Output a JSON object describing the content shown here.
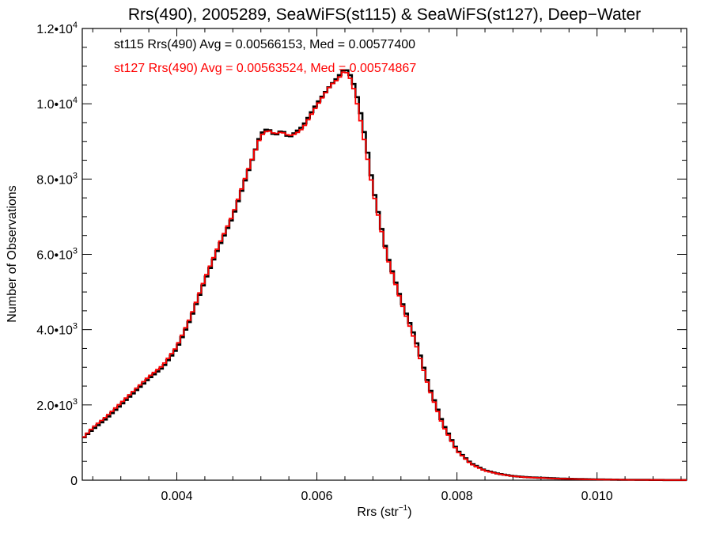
{
  "chart_data": {
    "type": "line",
    "title": "Rrs(490), 2005289, SeaWiFS(st115) & SeaWiFS(st127), Deep−Water",
    "xlabel_main": "Rrs (str",
    "xlabel_sup": "−1",
    "xlabel_end": ")",
    "ylabel": "Number of Observations",
    "xlim": [
      0.00265,
      0.01128
    ],
    "ylim": [
      0,
      12000
    ],
    "x_ticks": [
      {
        "value": 0.004,
        "label": "0.004"
      },
      {
        "value": 0.006,
        "label": "0.006"
      },
      {
        "value": 0.008,
        "label": "0.008"
      },
      {
        "value": 0.01,
        "label": "0.010"
      }
    ],
    "y_ticks": [
      {
        "value": 0,
        "mant": "0",
        "exp": ""
      },
      {
        "value": 2000,
        "mant": "2.0•10",
        "exp": "3"
      },
      {
        "value": 4000,
        "mant": "4.0•10",
        "exp": "3"
      },
      {
        "value": 6000,
        "mant": "6.0•10",
        "exp": "3"
      },
      {
        "value": 8000,
        "mant": "8.0•10",
        "exp": "3"
      },
      {
        "value": 10000,
        "mant": "1.0•10",
        "exp": "4"
      },
      {
        "value": 12000,
        "mant": "1.2•10",
        "exp": "4"
      }
    ],
    "series": [
      {
        "name": "st115",
        "color": "#000000",
        "legend": "st115 Rrs(490) Avg = 0.00566153, Med = 0.00577400",
        "x": [
          0.00265,
          0.0028,
          0.003,
          0.0032,
          0.0034,
          0.0036,
          0.0038,
          0.004,
          0.0042,
          0.0044,
          0.0046,
          0.0048,
          0.005,
          0.0052,
          0.0053,
          0.0054,
          0.0055,
          0.0056,
          0.0057,
          0.0058,
          0.006,
          0.0062,
          0.0063,
          0.0064,
          0.0065,
          0.0066,
          0.0067,
          0.0068,
          0.007,
          0.0072,
          0.0074,
          0.0076,
          0.0078,
          0.008,
          0.0082,
          0.0084,
          0.0086,
          0.0088,
          0.009,
          0.0095,
          0.01,
          0.0105,
          0.011,
          0.01128
        ],
        "y": [
          1100,
          1350,
          1650,
          2000,
          2350,
          2700,
          3000,
          3500,
          4300,
          5300,
          6200,
          7000,
          8100,
          9200,
          9350,
          9150,
          9300,
          9100,
          9250,
          9400,
          10000,
          10500,
          10700,
          10950,
          10700,
          10000,
          9000,
          7800,
          6000,
          4800,
          3800,
          2500,
          1500,
          800,
          450,
          260,
          170,
          110,
          80,
          40,
          20,
          10,
          5,
          5
        ]
      },
      {
        "name": "st127",
        "color": "#ff0000",
        "legend": "st127 Rrs(490) Avg = 0.00563524, Med = 0.00574867",
        "x": [
          0.00265,
          0.0028,
          0.003,
          0.0032,
          0.0034,
          0.0036,
          0.0038,
          0.004,
          0.0042,
          0.0044,
          0.0046,
          0.0048,
          0.005,
          0.0052,
          0.0053,
          0.0054,
          0.0055,
          0.0056,
          0.0057,
          0.0058,
          0.006,
          0.0062,
          0.0063,
          0.0064,
          0.0065,
          0.0066,
          0.0067,
          0.0068,
          0.007,
          0.0072,
          0.0074,
          0.0076,
          0.0078,
          0.008,
          0.0082,
          0.0084,
          0.0086,
          0.0088,
          0.009,
          0.0095,
          0.01,
          0.0105,
          0.011,
          0.01128
        ],
        "y": [
          1100,
          1400,
          1700,
          2050,
          2400,
          2750,
          3050,
          3550,
          4350,
          5350,
          6250,
          7050,
          8150,
          9150,
          9300,
          9200,
          9250,
          9150,
          9200,
          9350,
          9950,
          10500,
          10650,
          10900,
          10600,
          9800,
          8800,
          7700,
          5950,
          4750,
          3700,
          2450,
          1450,
          780,
          430,
          250,
          165,
          105,
          75,
          38,
          18,
          9,
          5,
          5
        ]
      }
    ]
  }
}
